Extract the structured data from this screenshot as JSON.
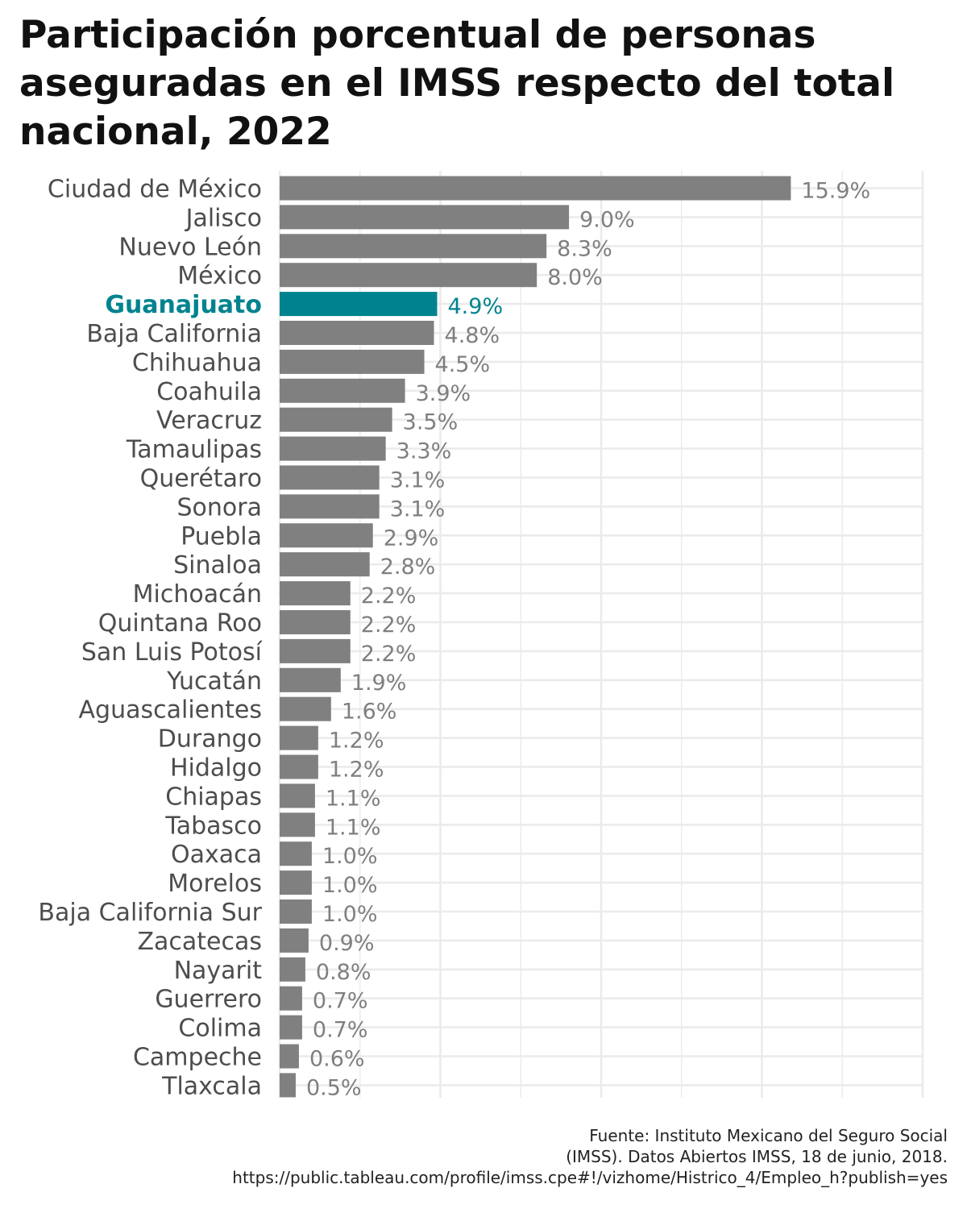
{
  "title": "Participación porcentual de personas aseguradas en el IMSS respecto del total nacional, 2022",
  "chart_data": {
    "type": "bar",
    "orientation": "horizontal",
    "title": "Participación porcentual de personas aseguradas en el IMSS respecto del total nacional, 2022",
    "xlabel": "",
    "ylabel": "",
    "value_suffix": "%",
    "xlim": [
      0,
      20
    ],
    "grid": true,
    "highlight": "Guanajuato",
    "categories": [
      "Ciudad de México",
      "Jalisco",
      "Nuevo León",
      "México",
      "Guanajuato",
      "Baja California",
      "Chihuahua",
      "Coahuila",
      "Veracruz",
      "Tamaulipas",
      "Querétaro",
      "Sonora",
      "Puebla",
      "Sinaloa",
      "Michoacán",
      "Quintana Roo",
      "San Luis Potosí",
      "Yucatán",
      "Aguascalientes",
      "Durango",
      "Hidalgo",
      "Chiapas",
      "Tabasco",
      "Oaxaca",
      "Morelos",
      "Baja California Sur",
      "Zacatecas",
      "Nayarit",
      "Guerrero",
      "Colima",
      "Campeche",
      "Tlaxcala"
    ],
    "values": [
      15.9,
      9.0,
      8.3,
      8.0,
      4.9,
      4.8,
      4.5,
      3.9,
      3.5,
      3.3,
      3.1,
      3.1,
      2.9,
      2.8,
      2.2,
      2.2,
      2.2,
      1.9,
      1.6,
      1.2,
      1.2,
      1.1,
      1.1,
      1.0,
      1.0,
      1.0,
      0.9,
      0.8,
      0.7,
      0.7,
      0.6,
      0.5
    ],
    "labels": [
      "15.9%",
      "9.0%",
      "8.3%",
      "8.0%",
      "4.9%",
      "4.8%",
      "4.5%",
      "3.9%",
      "3.5%",
      "3.3%",
      "3.1%",
      "3.1%",
      "2.9%",
      "2.8%",
      "2.2%",
      "2.2%",
      "2.2%",
      "1.9%",
      "1.6%",
      "1.2%",
      "1.2%",
      "1.1%",
      "1.1%",
      "1.0%",
      "1.0%",
      "1.0%",
      "0.9%",
      "0.8%",
      "0.7%",
      "0.7%",
      "0.6%",
      "0.5%"
    ]
  },
  "colors": {
    "bar": "#808080",
    "highlight": "#00838f",
    "category_text": "#4d4d4d",
    "value_text": "#7f7f7f",
    "grid": "#ebebeb"
  },
  "caption": {
    "line1": "Fuente: Instituto Mexicano del Seguro Social",
    "line2": "(IMSS). Datos Abiertos IMSS, 18 de junio, 2018.",
    "line3": "https://public.tableau.com/profile/imss.cpe#!/vizhome/Histrico_4/Empleo_h?publish=yes"
  }
}
